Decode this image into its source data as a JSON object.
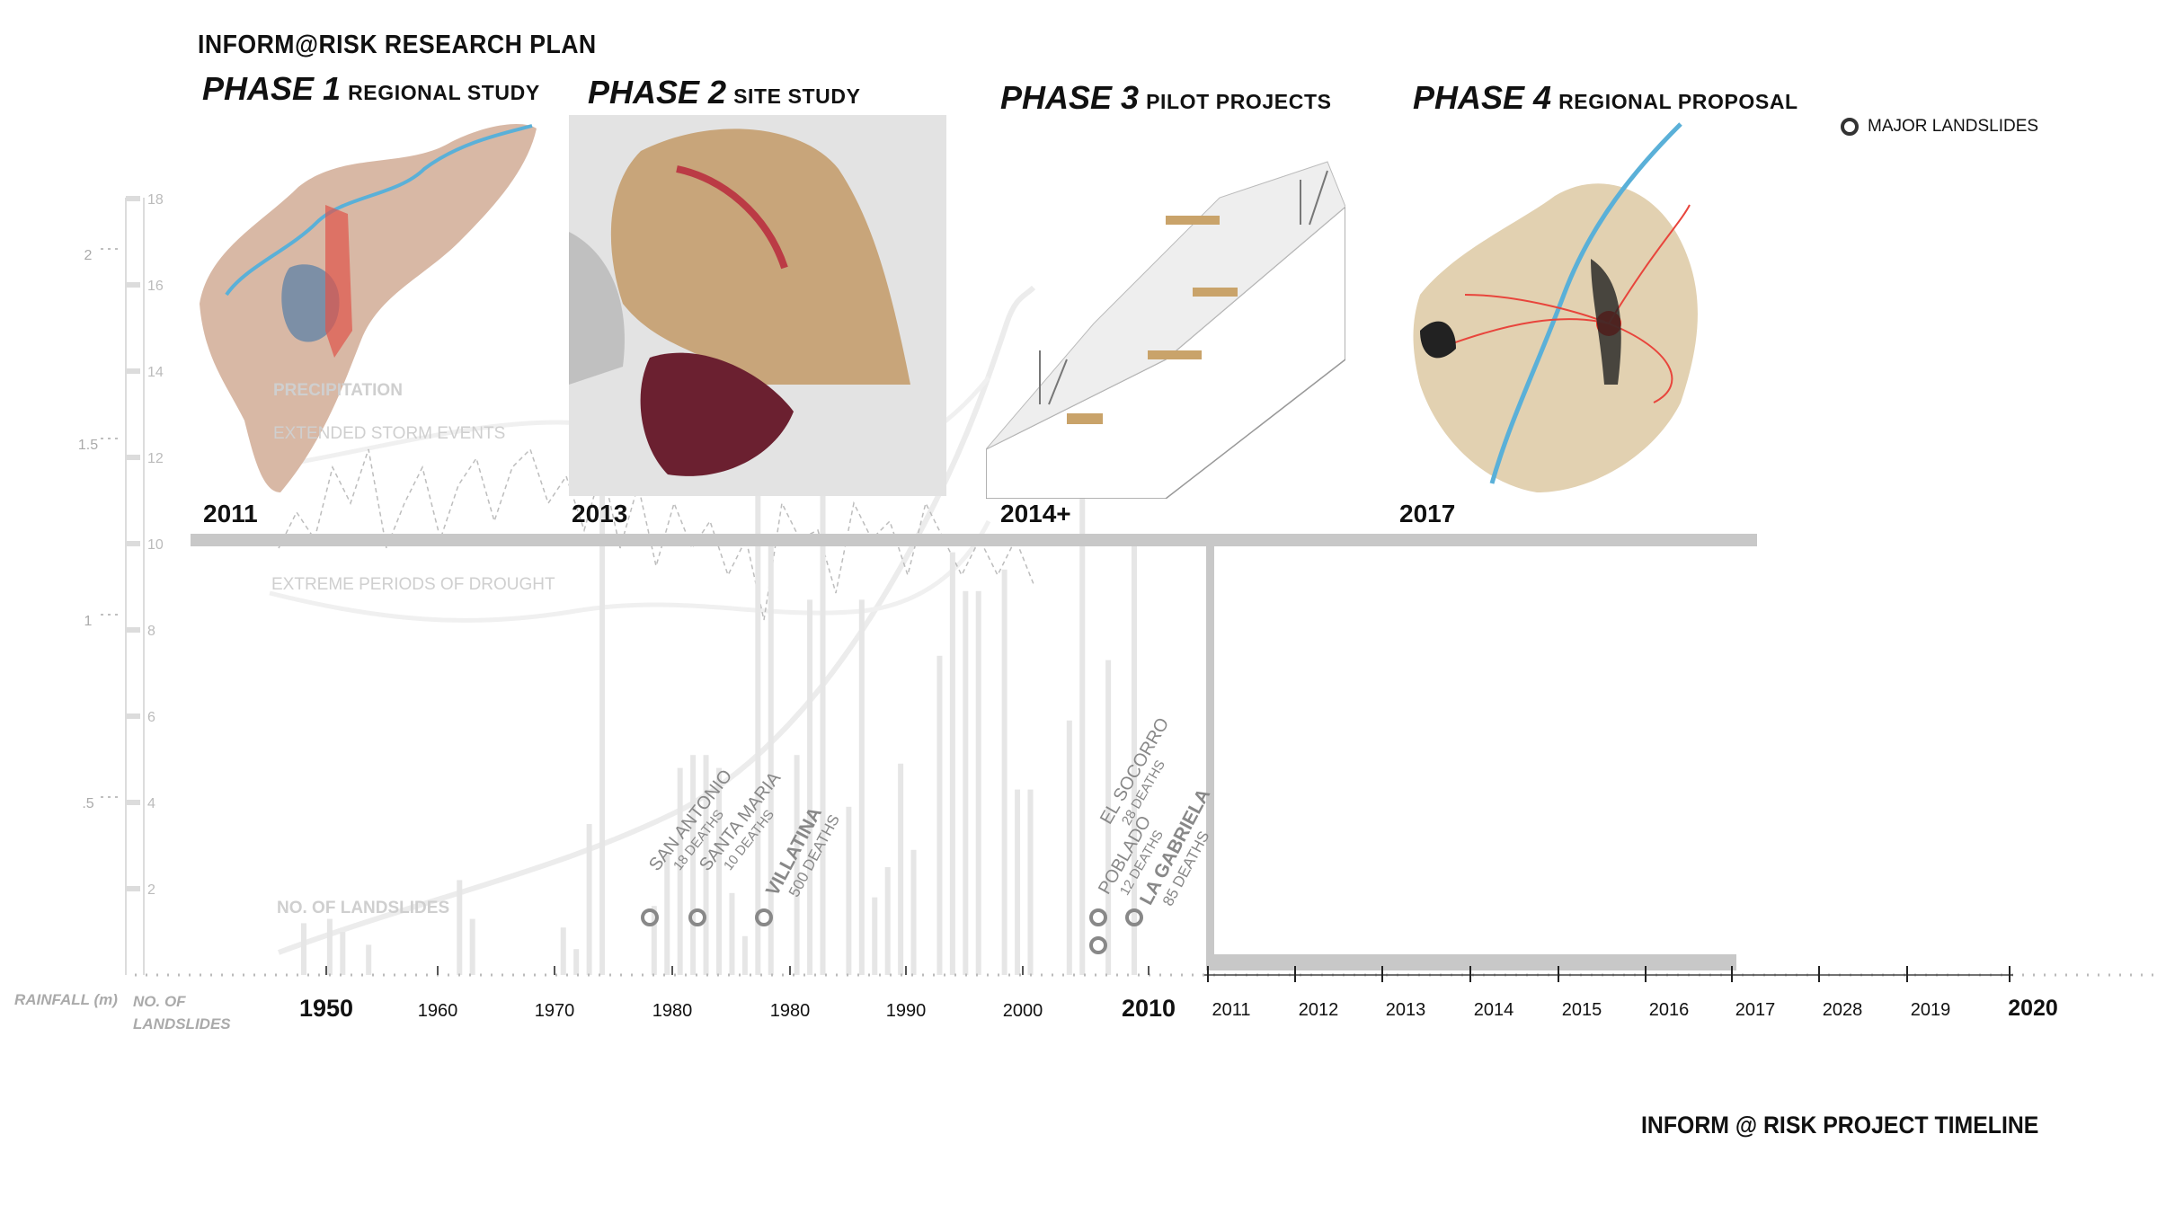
{
  "header": {
    "plan_title": "INFORM@RISK RESEARCH PLAN"
  },
  "phases": [
    {
      "label": "PHASE 1",
      "subtitle": "REGIONAL STUDY",
      "year": "2011"
    },
    {
      "label": "PHASE 2",
      "subtitle": "SITE STUDY",
      "year": "2013"
    },
    {
      "label": "PHASE 3",
      "subtitle": "PILOT PROJECTS",
      "year": "2014+"
    },
    {
      "label": "PHASE 4",
      "subtitle": "REGIONAL PROPOSAL",
      "year": "2017"
    }
  ],
  "legend": {
    "major_landslides": "MAJOR LANDSLIDES"
  },
  "chart_labels": {
    "precipitation": "PRECIPITATION",
    "storm": "EXTENDED STORM EVENTS",
    "drought": "EXTREME PERIODS OF DROUGHT",
    "landslides": "NO. OF LANDSLIDES"
  },
  "axes": {
    "rainfall_label": "RAINFALL (m)",
    "landslides_label_1": "NO. OF",
    "landslides_label_2": "LANDSLIDES",
    "rainfall_ticks": [
      "2",
      "1.5",
      "1",
      ".5"
    ],
    "landslide_ticks": [
      "18",
      "16",
      "14",
      "12",
      "10",
      "8",
      "6",
      "4",
      "2"
    ]
  },
  "timeline": {
    "history_ticks": [
      "1950",
      "1960",
      "1970",
      "1980",
      "1980",
      "1990",
      "2000",
      "2010"
    ],
    "project_ticks": [
      "2011",
      "2012",
      "2013",
      "2014",
      "2015",
      "2016",
      "2017",
      "2028",
      "2019",
      "2020"
    ]
  },
  "events": [
    {
      "name": "SAN ANTONIO",
      "deaths": "18 DEATHS"
    },
    {
      "name": "SANTA MARIA",
      "deaths": "10 DEATHS"
    },
    {
      "name": "VILLATINA",
      "deaths": "500 DEATHS"
    },
    {
      "name": "EL SOCORRO",
      "deaths": "28 DEATHS"
    },
    {
      "name": "POBLADO",
      "deaths": "12 DEATHS"
    },
    {
      "name": "LA GABRIELA",
      "deaths": "85 DEATHS"
    }
  ],
  "footer": {
    "title": "INFORM @ RISK PROJECT TIMELINE"
  },
  "chart_data": {
    "type": "bar",
    "landslide_bars_heights": [
      1.2,
      0,
      1.3,
      1.0,
      0,
      0.7,
      0,
      0,
      0,
      0,
      0,
      0,
      2.2,
      1.3,
      0,
      0,
      0,
      0,
      0,
      0,
      1.1,
      0.6,
      3.5,
      18.1,
      0,
      0,
      0,
      1.6,
      2.8,
      4.8,
      5.1,
      5.1,
      4.8,
      1.9,
      0.9,
      17.8,
      10,
      0,
      5.1,
      8.7,
      13,
      0,
      3.9,
      8.7,
      1.8,
      2.5,
      4.9,
      2.9,
      0,
      7.4,
      9.8,
      8.9,
      8.9,
      0,
      9.4,
      4.3,
      4.3,
      0,
      0,
      5.9,
      12.5,
      0,
      7.3,
      0,
      10.2
    ],
    "colors": {
      "bars": "#e6e6e6",
      "timeline": "#c8c8c8",
      "axis": "#cccccc",
      "landslide_marker": "#888888"
    }
  }
}
